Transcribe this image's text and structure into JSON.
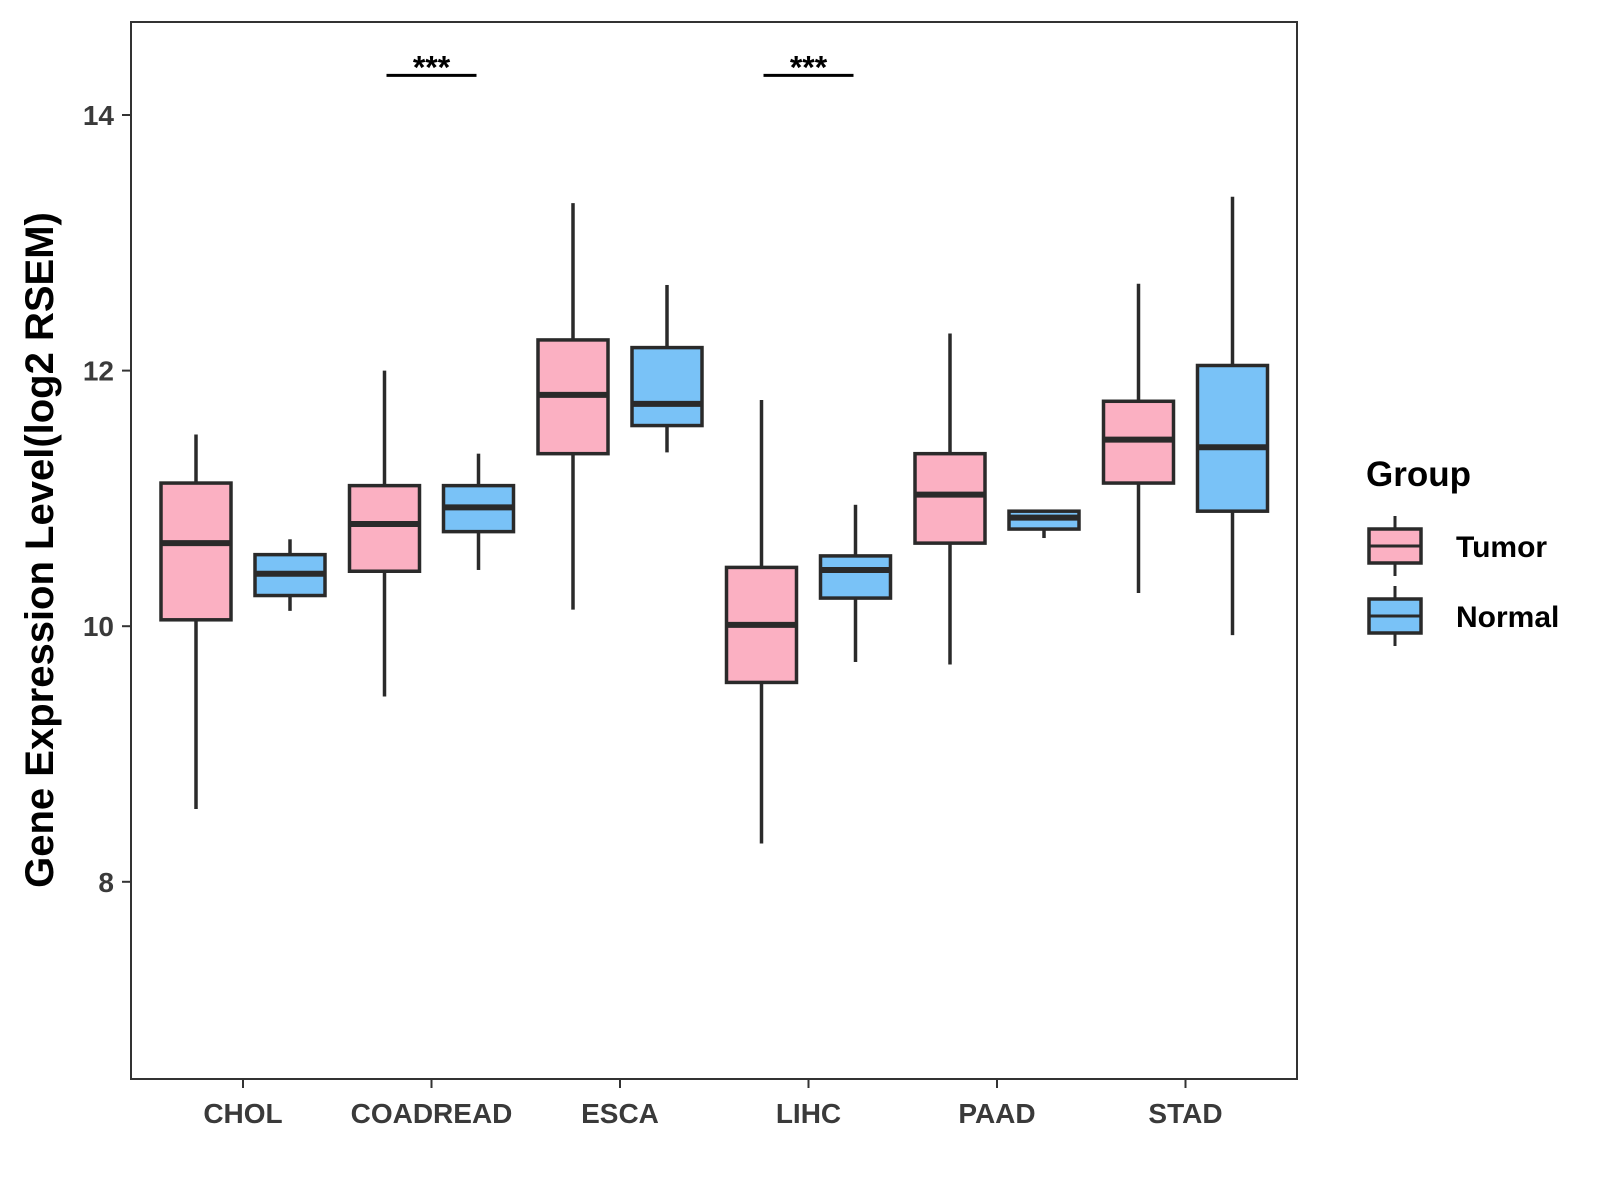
{
  "chart_data": {
    "type": "boxplot",
    "ylabel": "Gene Expression Level(log2 RSEM)",
    "xlabel": "",
    "ylim": [
      6.5,
      14.8
    ],
    "yticks": [
      8,
      10,
      12,
      14
    ],
    "categories": [
      "CHOL",
      "COADREAD",
      "ESCA",
      "LIHC",
      "PAAD",
      "STAD"
    ],
    "legend": {
      "title": "Group",
      "position": "right",
      "entries": [
        "Tumor",
        "Normal"
      ]
    },
    "colors": {
      "Tumor": "#FBB0C2",
      "Normal": "#79C2F7",
      "outline": "#2a2a2a"
    },
    "grid": false,
    "series": [
      {
        "name": "Tumor",
        "boxes": [
          {
            "category": "CHOL",
            "min": 8.57,
            "q1": 10.05,
            "median": 10.65,
            "q3": 11.12,
            "max": 11.5
          },
          {
            "category": "COADREAD",
            "min": 9.45,
            "q1": 10.43,
            "median": 10.8,
            "q3": 11.1,
            "max": 12.0
          },
          {
            "category": "ESCA",
            "min": 10.13,
            "q1": 11.35,
            "median": 11.81,
            "q3": 12.24,
            "max": 13.31
          },
          {
            "category": "LIHC",
            "min": 8.3,
            "q1": 9.56,
            "median": 10.01,
            "q3": 10.46,
            "max": 11.77
          },
          {
            "category": "PAAD",
            "min": 9.7,
            "q1": 10.65,
            "median": 11.03,
            "q3": 11.35,
            "max": 12.29
          },
          {
            "category": "STAD",
            "min": 10.26,
            "q1": 11.12,
            "median": 11.46,
            "q3": 11.76,
            "max": 12.68
          }
        ]
      },
      {
        "name": "Normal",
        "boxes": [
          {
            "category": "CHOL",
            "min": 10.12,
            "q1": 10.24,
            "median": 10.41,
            "q3": 10.56,
            "max": 10.68
          },
          {
            "category": "COADREAD",
            "min": 10.44,
            "q1": 10.74,
            "median": 10.93,
            "q3": 11.1,
            "max": 11.35
          },
          {
            "category": "ESCA",
            "min": 11.36,
            "q1": 11.57,
            "median": 11.74,
            "q3": 12.18,
            "max": 12.67
          },
          {
            "category": "LIHC",
            "min": 9.72,
            "q1": 10.22,
            "median": 10.44,
            "q3": 10.55,
            "max": 10.95
          },
          {
            "category": "PAAD",
            "min": 10.69,
            "q1": 10.76,
            "median": 10.85,
            "q3": 10.9,
            "max": 10.91
          },
          {
            "category": "STAD",
            "min": 9.93,
            "q1": 10.9,
            "median": 11.4,
            "q3": 12.04,
            "max": 13.36
          }
        ]
      }
    ],
    "annotations": [
      {
        "category": "COADREAD",
        "text": "***",
        "y": 14.31
      },
      {
        "category": "LIHC",
        "text": "***",
        "y": 14.31
      }
    ]
  }
}
